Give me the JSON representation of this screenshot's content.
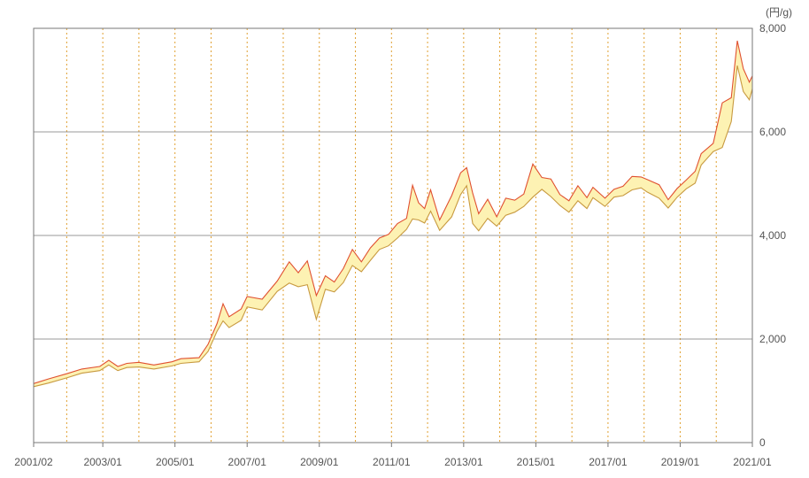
{
  "chart_data": {
    "type": "area",
    "unit_label": "(円/g)",
    "xlim": [
      "2001/02",
      "2021/01"
    ],
    "ylim": [
      0,
      8000
    ],
    "grid": true,
    "y_ticks": [
      {
        "value": 0,
        "label": "0"
      },
      {
        "value": 2000,
        "label": "2,000"
      },
      {
        "value": 4000,
        "label": "4,000"
      },
      {
        "value": 6000,
        "label": "6,000"
      },
      {
        "value": 8000,
        "label": "8,000"
      }
    ],
    "x_ticks": [
      "2001/02",
      "2003/01",
      "2005/01",
      "2007/01",
      "2009/01",
      "2011/01",
      "2013/01",
      "2015/01",
      "2017/01",
      "2019/01",
      "2021/01"
    ],
    "vertical_grid_dates": [
      "2002/01",
      "2003/01",
      "2004/01",
      "2005/01",
      "2006/01",
      "2007/01",
      "2008/01",
      "2009/01",
      "2010/01",
      "2011/01",
      "2012/01",
      "2013/01",
      "2014/01",
      "2015/01",
      "2016/01",
      "2017/01",
      "2018/01",
      "2019/01",
      "2020/01"
    ],
    "series": [
      {
        "role": "high",
        "color": "#e05030",
        "points": [
          [
            "2001/02",
            1140
          ],
          [
            "2001/07",
            1230
          ],
          [
            "2002/01",
            1330
          ],
          [
            "2002/06",
            1420
          ],
          [
            "2002/12",
            1470
          ],
          [
            "2003/03",
            1590
          ],
          [
            "2003/06",
            1470
          ],
          [
            "2003/09",
            1530
          ],
          [
            "2004/01",
            1550
          ],
          [
            "2004/06",
            1500
          ],
          [
            "2004/12",
            1560
          ],
          [
            "2005/03",
            1620
          ],
          [
            "2005/09",
            1640
          ],
          [
            "2005/12",
            1900
          ],
          [
            "2006/03",
            2300
          ],
          [
            "2006/05",
            2680
          ],
          [
            "2006/07",
            2430
          ],
          [
            "2006/11",
            2580
          ],
          [
            "2007/01",
            2820
          ],
          [
            "2007/06",
            2770
          ],
          [
            "2007/11",
            3120
          ],
          [
            "2008/03",
            3490
          ],
          [
            "2008/06",
            3280
          ],
          [
            "2008/09",
            3510
          ],
          [
            "2008/12",
            2840
          ],
          [
            "2009/03",
            3220
          ],
          [
            "2009/06",
            3100
          ],
          [
            "2009/09",
            3360
          ],
          [
            "2009/12",
            3730
          ],
          [
            "2010/03",
            3490
          ],
          [
            "2010/06",
            3760
          ],
          [
            "2010/09",
            3950
          ],
          [
            "2010/12",
            4020
          ],
          [
            "2011/03",
            4230
          ],
          [
            "2011/06",
            4330
          ],
          [
            "2011/08",
            4970
          ],
          [
            "2011/10",
            4630
          ],
          [
            "2011/12",
            4520
          ],
          [
            "2012/02",
            4880
          ],
          [
            "2012/05",
            4300
          ],
          [
            "2012/09",
            4770
          ],
          [
            "2012/12",
            5210
          ],
          [
            "2013/02",
            5310
          ],
          [
            "2013/04",
            4820
          ],
          [
            "2013/06",
            4420
          ],
          [
            "2013/09",
            4700
          ],
          [
            "2013/12",
            4360
          ],
          [
            "2014/03",
            4720
          ],
          [
            "2014/06",
            4680
          ],
          [
            "2014/09",
            4800
          ],
          [
            "2014/12",
            5380
          ],
          [
            "2015/03",
            5120
          ],
          [
            "2015/06",
            5090
          ],
          [
            "2015/09",
            4790
          ],
          [
            "2015/12",
            4670
          ],
          [
            "2016/03",
            4960
          ],
          [
            "2016/06",
            4730
          ],
          [
            "2016/08",
            4930
          ],
          [
            "2016/12",
            4720
          ],
          [
            "2017/03",
            4890
          ],
          [
            "2017/06",
            4950
          ],
          [
            "2017/09",
            5140
          ],
          [
            "2017/12",
            5130
          ],
          [
            "2018/02",
            5080
          ],
          [
            "2018/06",
            4980
          ],
          [
            "2018/09",
            4690
          ],
          [
            "2018/12",
            4910
          ],
          [
            "2019/03",
            5070
          ],
          [
            "2019/06",
            5240
          ],
          [
            "2019/08",
            5580
          ],
          [
            "2019/12",
            5780
          ],
          [
            "2020/03",
            6560
          ],
          [
            "2020/06",
            6660
          ],
          [
            "2020/08",
            7760
          ],
          [
            "2020/10",
            7220
          ],
          [
            "2020/12",
            6960
          ],
          [
            "2021/01",
            7080
          ]
        ]
      },
      {
        "role": "low",
        "color": "#c89a40",
        "points": [
          [
            "2001/02",
            1080
          ],
          [
            "2001/07",
            1150
          ],
          [
            "2002/01",
            1250
          ],
          [
            "2002/06",
            1340
          ],
          [
            "2002/12",
            1390
          ],
          [
            "2003/03",
            1500
          ],
          [
            "2003/06",
            1390
          ],
          [
            "2003/09",
            1450
          ],
          [
            "2004/01",
            1460
          ],
          [
            "2004/06",
            1420
          ],
          [
            "2004/12",
            1480
          ],
          [
            "2005/03",
            1530
          ],
          [
            "2005/09",
            1560
          ],
          [
            "2005/12",
            1760
          ],
          [
            "2006/03",
            2150
          ],
          [
            "2006/05",
            2350
          ],
          [
            "2006/07",
            2220
          ],
          [
            "2006/11",
            2360
          ],
          [
            "2007/01",
            2620
          ],
          [
            "2007/06",
            2560
          ],
          [
            "2007/11",
            2920
          ],
          [
            "2008/03",
            3080
          ],
          [
            "2008/06",
            3010
          ],
          [
            "2008/09",
            3050
          ],
          [
            "2008/12",
            2380
          ],
          [
            "2009/03",
            2960
          ],
          [
            "2009/06",
            2910
          ],
          [
            "2009/09",
            3090
          ],
          [
            "2009/12",
            3420
          ],
          [
            "2010/03",
            3300
          ],
          [
            "2010/06",
            3520
          ],
          [
            "2010/09",
            3730
          ],
          [
            "2010/12",
            3800
          ],
          [
            "2011/03",
            3950
          ],
          [
            "2011/06",
            4120
          ],
          [
            "2011/08",
            4320
          ],
          [
            "2011/10",
            4300
          ],
          [
            "2011/12",
            4240
          ],
          [
            "2012/02",
            4470
          ],
          [
            "2012/05",
            4100
          ],
          [
            "2012/09",
            4360
          ],
          [
            "2012/12",
            4790
          ],
          [
            "2013/02",
            4960
          ],
          [
            "2013/04",
            4230
          ],
          [
            "2013/06",
            4090
          ],
          [
            "2013/09",
            4330
          ],
          [
            "2013/12",
            4180
          ],
          [
            "2014/03",
            4390
          ],
          [
            "2014/06",
            4450
          ],
          [
            "2014/09",
            4560
          ],
          [
            "2014/12",
            4740
          ],
          [
            "2015/03",
            4890
          ],
          [
            "2015/06",
            4750
          ],
          [
            "2015/09",
            4580
          ],
          [
            "2015/12",
            4450
          ],
          [
            "2016/03",
            4670
          ],
          [
            "2016/06",
            4520
          ],
          [
            "2016/08",
            4730
          ],
          [
            "2016/12",
            4560
          ],
          [
            "2017/03",
            4740
          ],
          [
            "2017/06",
            4770
          ],
          [
            "2017/09",
            4880
          ],
          [
            "2017/12",
            4920
          ],
          [
            "2018/02",
            4840
          ],
          [
            "2018/06",
            4720
          ],
          [
            "2018/09",
            4530
          ],
          [
            "2018/12",
            4740
          ],
          [
            "2019/03",
            4900
          ],
          [
            "2019/06",
            5010
          ],
          [
            "2019/08",
            5360
          ],
          [
            "2019/12",
            5620
          ],
          [
            "2020/03",
            5700
          ],
          [
            "2020/06",
            6200
          ],
          [
            "2020/08",
            7280
          ],
          [
            "2020/10",
            6780
          ],
          [
            "2020/12",
            6620
          ],
          [
            "2021/01",
            6830
          ]
        ]
      }
    ],
    "fill_color": "#fdf2b3",
    "gridline_color": "#777777",
    "vertical_grid_color": "#e0a030"
  }
}
